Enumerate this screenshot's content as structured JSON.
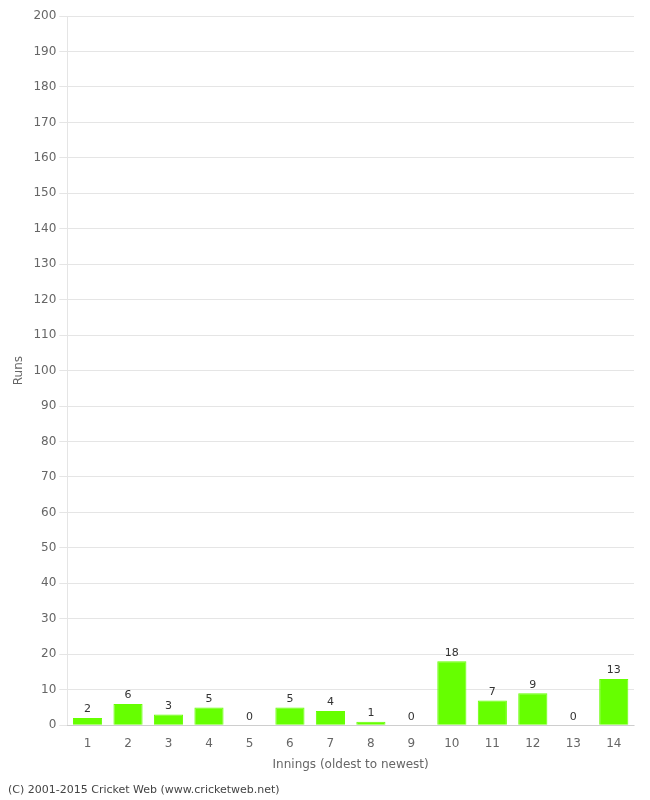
{
  "chart_data": {
    "type": "bar",
    "categories": [
      1,
      2,
      3,
      4,
      5,
      6,
      7,
      8,
      9,
      10,
      11,
      12,
      13,
      14
    ],
    "values": [
      2,
      6,
      3,
      5,
      0,
      5,
      4,
      1,
      0,
      18,
      7,
      9,
      0,
      13
    ],
    "color": "#66ff00",
    "xlabel": "Innings (oldest to newest)",
    "ylabel": "Runs",
    "ylim": [
      0,
      200
    ],
    "yticks": [
      0,
      10,
      20,
      30,
      40,
      50,
      60,
      70,
      80,
      90,
      100,
      110,
      120,
      130,
      140,
      150,
      160,
      170,
      180,
      190,
      200
    ],
    "grid": "y",
    "data_labels": true,
    "annotations": [
      "(C) 2001-2015 Cricket Web (www.cricketweb.net)"
    ]
  }
}
